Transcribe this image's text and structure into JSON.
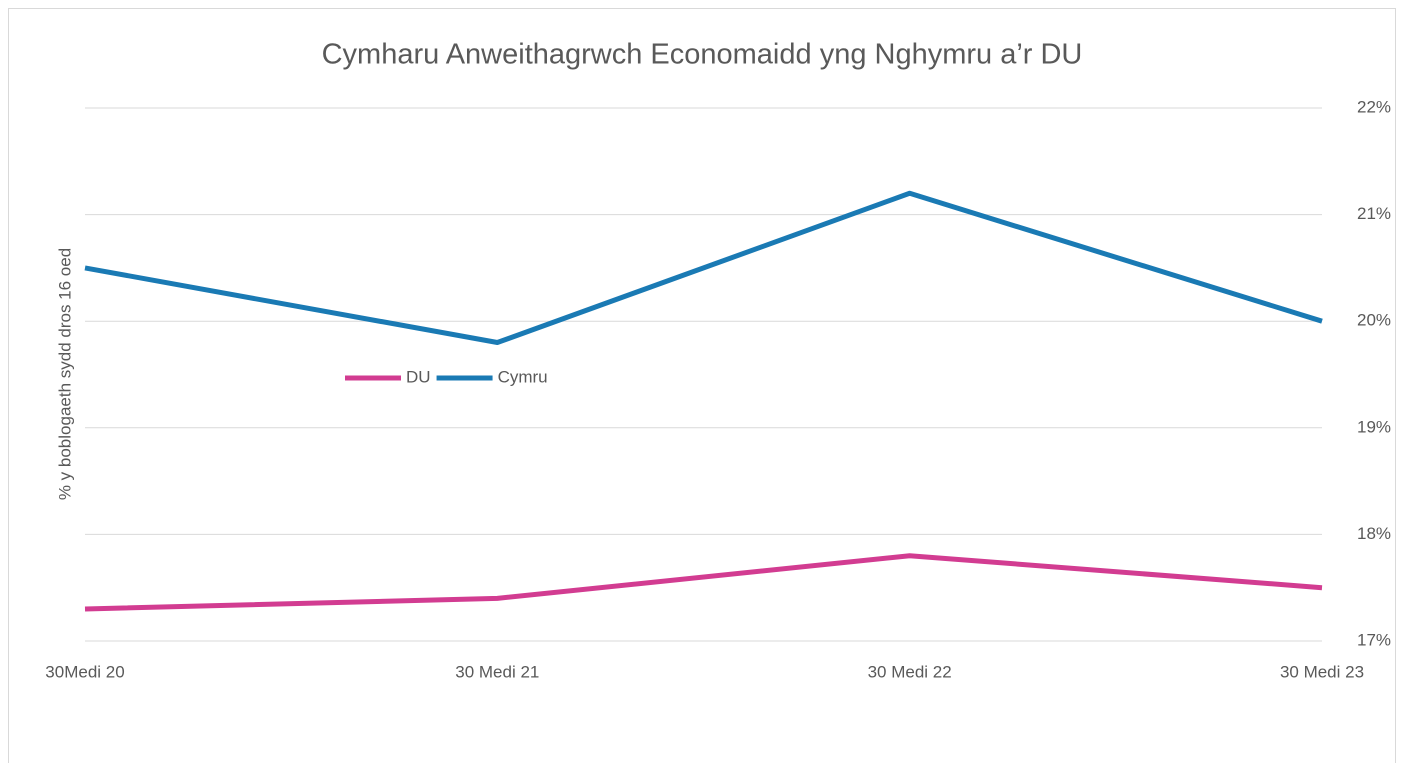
{
  "chart_data": {
    "type": "line",
    "title": "Cymharu Anweithagrwch Economaidd yng Nghymru a’r DU",
    "y_label": "% y boblogaeth sydd dros 16 oed",
    "categories": [
      "30Medi 20",
      "30 Medi 21",
      "30 Medi 22",
      "30 Medi 23"
    ],
    "series": [
      {
        "name": "DU",
        "color": "#d23c91",
        "values": [
          17.3,
          17.4,
          17.8,
          17.5
        ]
      },
      {
        "name": "Cymru",
        "color": "#1a7ab4",
        "values": [
          20.5,
          19.8,
          21.2,
          20.0
        ]
      }
    ],
    "ylim": [
      17,
      22
    ],
    "yticks": [
      {
        "value": 17,
        "label": "17%"
      },
      {
        "value": 18,
        "label": "18%"
      },
      {
        "value": 19,
        "label": "19%"
      },
      {
        "value": 20,
        "label": "20%"
      },
      {
        "value": 21,
        "label": "21%"
      },
      {
        "value": 22,
        "label": "22%"
      }
    ],
    "y_axis_side": "right",
    "grid": true,
    "legend": "middle-left"
  }
}
